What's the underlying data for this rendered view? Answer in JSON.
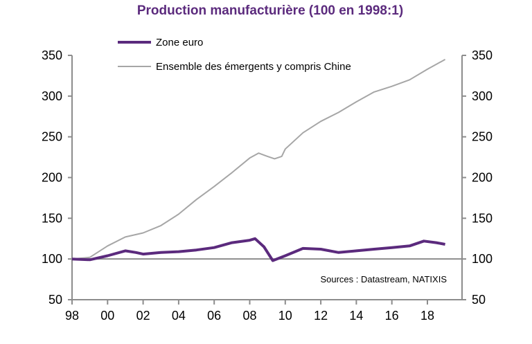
{
  "chart_data": {
    "type": "line",
    "title": "Production manufacturière (100 en 1998:1)",
    "xlabel": "",
    "ylabel": "",
    "xlim": [
      1998,
      2020
    ],
    "ylim": [
      50,
      350
    ],
    "x_tick_labels": [
      "98",
      "00",
      "02",
      "04",
      "06",
      "08",
      "10",
      "12",
      "14",
      "16",
      "18"
    ],
    "x_tick_values": [
      1998,
      2000,
      2002,
      2004,
      2006,
      2008,
      2010,
      2012,
      2014,
      2016,
      2018
    ],
    "y_ticks": [
      50,
      100,
      150,
      200,
      250,
      300,
      350
    ],
    "y_tick_labels": [
      "50",
      "100",
      "150",
      "200",
      "250",
      "300",
      "350"
    ],
    "y_axis_right": true,
    "reference_line": 100,
    "grid": false,
    "legend_position": "top",
    "annotation": "Sources : Datastream, NATIXIS",
    "series": [
      {
        "name": "Zone euro",
        "color": "#5b2a7d",
        "x": [
          1998,
          1999,
          2000,
          2001,
          2001.6,
          2002,
          2003,
          2004,
          2005,
          2006,
          2007,
          2008,
          2008.3,
          2008.8,
          2009.3,
          2010,
          2011,
          2012,
          2013,
          2014,
          2015,
          2016,
          2017,
          2017.8,
          2018.5,
          2019
        ],
        "values": [
          100,
          99,
          104,
          110,
          108,
          106,
          108,
          109,
          111,
          114,
          120,
          123,
          125,
          115,
          98,
          104,
          113,
          112,
          108,
          110,
          112,
          114,
          116,
          122,
          120,
          118
        ]
      },
      {
        "name": "Ensemble des émergents y compris Chine",
        "color": "#a6a6a6",
        "x": [
          1998,
          1999,
          2000,
          2001,
          2002,
          2003,
          2004,
          2005,
          2006,
          2007,
          2008,
          2008.5,
          2009,
          2009.4,
          2009.8,
          2010,
          2011,
          2012,
          2013,
          2014,
          2015,
          2016,
          2017,
          2018,
          2019
        ],
        "values": [
          100,
          102,
          116,
          127,
          132,
          141,
          155,
          173,
          189,
          206,
          224,
          230,
          226,
          223,
          226,
          235,
          255,
          269,
          280,
          293,
          305,
          312,
          320,
          333,
          345
        ]
      }
    ]
  }
}
